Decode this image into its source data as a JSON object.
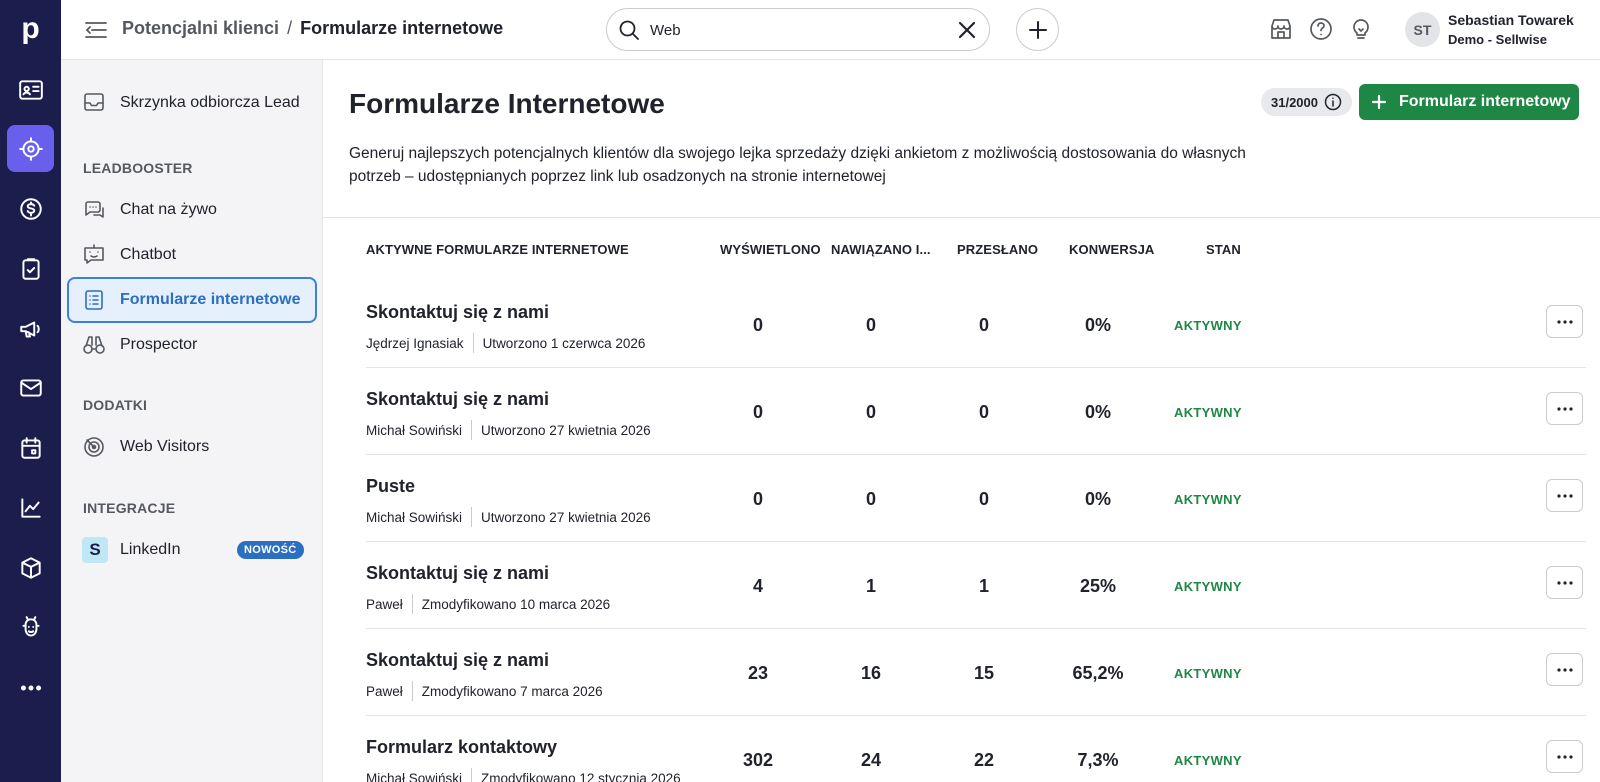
{
  "rail": {
    "logo": "p",
    "icons": [
      "cards-icon",
      "target-icon",
      "dollar-icon",
      "clipboard-icon",
      "megaphone-icon",
      "mail-icon",
      "calendar-icon",
      "chart-icon",
      "box-icon",
      "assistant-icon",
      "more-icon"
    ]
  },
  "header": {
    "breadcrumb_parent": "Potencjalni klienci",
    "breadcrumb_sep": "/",
    "breadcrumb_current": "Formularze internetowe",
    "search_value": "Web",
    "user_initials": "ST",
    "user_name": "Sebastian Towarek",
    "user_company": "Demo - Sellwise"
  },
  "sidebar": {
    "inbox_label": "Skrzynka odbiorcza Lead",
    "section_leadbooster": "LEADBOOSTER",
    "live_chat": "Chat na żywo",
    "chatbot": "Chatbot",
    "web_forms": "Formularze internetowe",
    "prospector": "Prospector",
    "section_addons": "DODATKI",
    "web_visitors": "Web Visitors",
    "section_integrations": "INTEGRACJE",
    "linkedin": "LinkedIn",
    "linkedin_icon": "S",
    "new_badge": "NOWOŚĆ"
  },
  "main": {
    "title": "Formularze Internetowe",
    "quota": "31/2000",
    "add_button": "Formularz internetowy",
    "description": "Generuj najlepszych potencjalnych klientów dla swojego lejka sprzedaży dzięki ankietom z możliwością dostosowania do własnych potrzeb – udostępnianych poprzez link lub osadzonych na stronie internetowej",
    "columns": {
      "name": "AKTYWNE FORMULARZE INTERNETOWE",
      "views": "WYŚWIETLONO",
      "engaged": "NAWIĄZANO I...",
      "submitted": "PRZESŁANO",
      "conversion": "KONWERSJA",
      "status": "STAN"
    },
    "rows": [
      {
        "title": "Skontaktuj się z nami",
        "author": "Jędrzej Ignasiak",
        "date": "Utworzono 1 czerwca 2026",
        "views": "0",
        "engaged": "0",
        "submitted": "0",
        "conversion": "0%",
        "status": "AKTYWNY"
      },
      {
        "title": "Skontaktuj się z nami",
        "author": "Michał Sowiński",
        "date": "Utworzono 27 kwietnia 2026",
        "views": "0",
        "engaged": "0",
        "submitted": "0",
        "conversion": "0%",
        "status": "AKTYWNY"
      },
      {
        "title": "Puste",
        "author": "Michał Sowiński",
        "date": "Utworzono 27 kwietnia 2026",
        "views": "0",
        "engaged": "0",
        "submitted": "0",
        "conversion": "0%",
        "status": "AKTYWNY"
      },
      {
        "title": "Skontaktuj się z nami",
        "author": "Paweł",
        "date": "Zmodyfikowano 10 marca 2026",
        "views": "4",
        "engaged": "1",
        "submitted": "1",
        "conversion": "25%",
        "status": "AKTYWNY"
      },
      {
        "title": "Skontaktuj się z nami",
        "author": "Paweł",
        "date": "Zmodyfikowano 7 marca 2026",
        "views": "23",
        "engaged": "16",
        "submitted": "15",
        "conversion": "65,2%",
        "status": "AKTYWNY"
      },
      {
        "title": "Formularz kontaktowy",
        "author": "Michał Sowiński",
        "date": "Zmodyfikowano 12 stycznia 2026",
        "views": "302",
        "engaged": "24",
        "submitted": "22",
        "conversion": "7,3%",
        "status": "AKTYWNY"
      }
    ]
  },
  "colors": {
    "rail_bg": "#1b1d4d",
    "rail_active": "#6860ec",
    "primary_green": "#1f8745",
    "active_blue": "#2a6fc0"
  }
}
